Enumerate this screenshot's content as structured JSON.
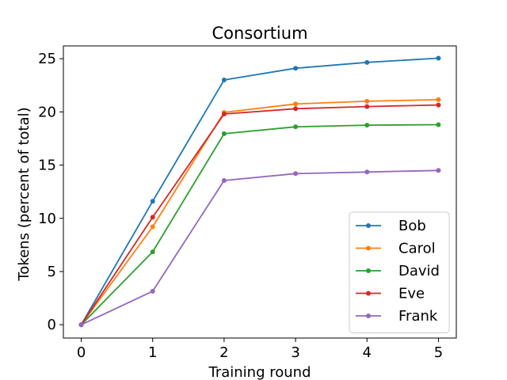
{
  "chart_data": {
    "type": "line",
    "title": "Consortium",
    "xlabel": "Training round",
    "ylabel": "Tokens (percent of total)",
    "x": [
      0,
      1,
      2,
      3,
      4,
      5
    ],
    "xticks": [
      "0",
      "1",
      "2",
      "3",
      "4",
      "5"
    ],
    "yticks": [
      "0",
      "5",
      "10",
      "15",
      "20",
      "25"
    ],
    "xlim": [
      -0.25,
      5.25
    ],
    "ylim": [
      -1.25,
      26.2
    ],
    "grid": false,
    "legend_position": "lower-right",
    "series": [
      {
        "name": "Bob",
        "color": "#1f77b4",
        "values": [
          0,
          11.6,
          23.0,
          24.1,
          24.65,
          25.05
        ]
      },
      {
        "name": "Carol",
        "color": "#ff7f0e",
        "values": [
          0,
          9.2,
          19.95,
          20.75,
          21.0,
          21.15
        ]
      },
      {
        "name": "David",
        "color": "#2ca02c",
        "values": [
          0,
          6.85,
          17.95,
          18.6,
          18.75,
          18.8
        ]
      },
      {
        "name": "Eve",
        "color": "#d62728",
        "values": [
          0,
          10.1,
          19.8,
          20.3,
          20.5,
          20.65
        ]
      },
      {
        "name": "Frank",
        "color": "#9467bd",
        "values": [
          0,
          3.15,
          13.55,
          14.2,
          14.35,
          14.5
        ]
      }
    ]
  }
}
